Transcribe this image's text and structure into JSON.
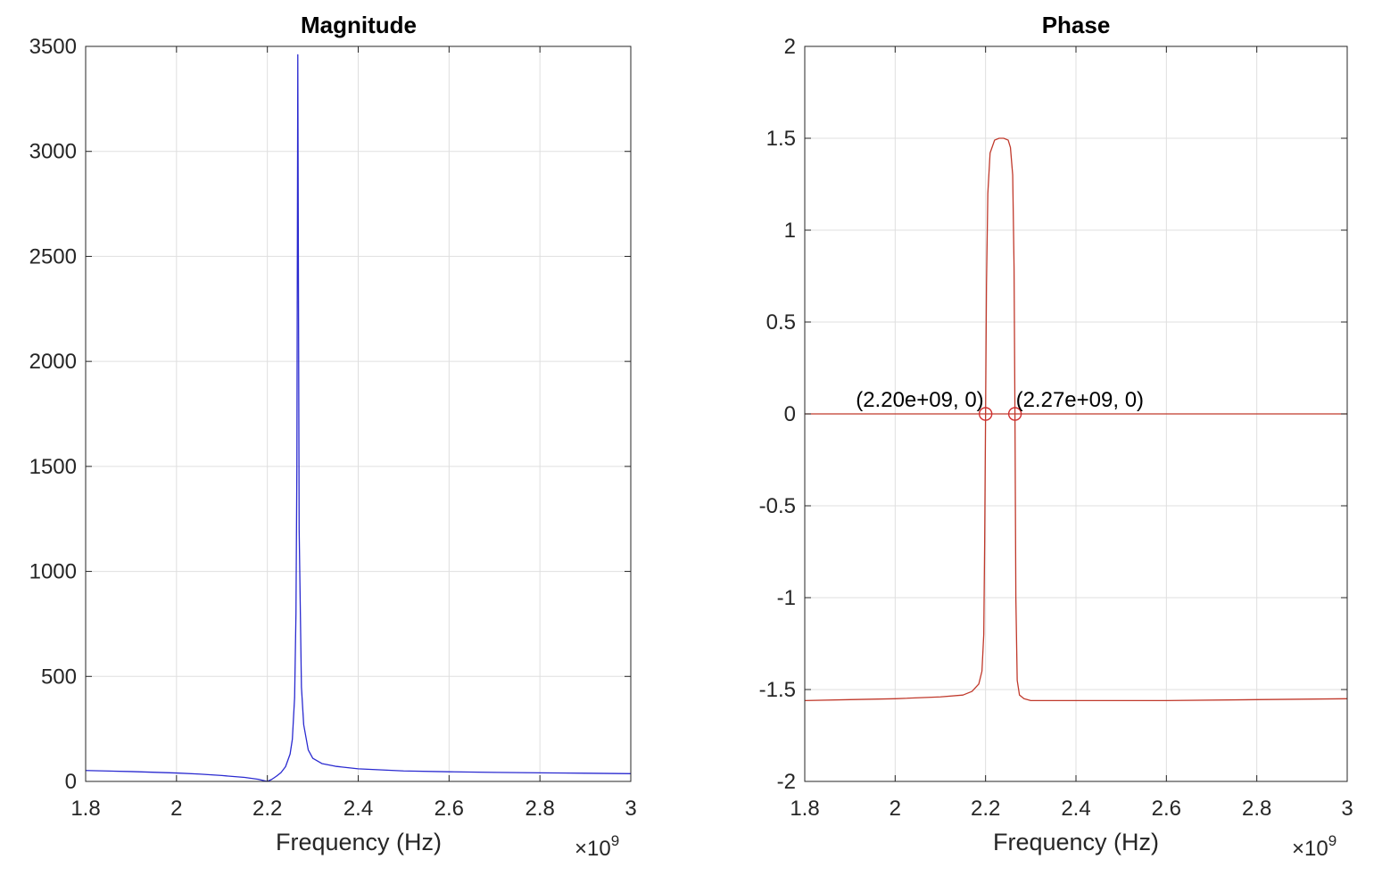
{
  "chart_data": [
    {
      "type": "line",
      "title": "Magnitude",
      "xlabel": "Frequency (Hz)",
      "ylabel": "",
      "x_exponent_label": "×10",
      "x_exponent": "9",
      "xlim": [
        1800000000.0,
        3000000000.0
      ],
      "ylim": [
        0,
        3500
      ],
      "xticks": [
        1800000000.0,
        2000000000.0,
        2200000000.0,
        2400000000.0,
        2600000000.0,
        2800000000.0,
        3000000000.0
      ],
      "xtick_labels": [
        "1.8",
        "2",
        "2.2",
        "2.4",
        "2.6",
        "2.8",
        "3"
      ],
      "yticks": [
        0,
        500,
        1000,
        1500,
        2000,
        2500,
        3000,
        3500
      ],
      "ytick_labels": [
        "0",
        "500",
        "1000",
        "1500",
        "2000",
        "2500",
        "3000",
        "3500"
      ],
      "grid": true,
      "line_color": "#2a2ad0",
      "series": [
        {
          "x": [
            1800000000.0,
            1900000000.0,
            2000000000.0,
            2050000000.0,
            2100000000.0,
            2150000000.0,
            2180000000.0,
            2200000000.0,
            2210000000.0,
            2220000000.0,
            2230000000.0,
            2240000000.0,
            2250000000.0,
            2255000000.0,
            2260000000.0,
            2263000000.0,
            2265000000.0,
            2267000000.0,
            2270000000.0,
            2275000000.0,
            2280000000.0,
            2290000000.0,
            2300000000.0,
            2320000000.0,
            2350000000.0,
            2400000000.0,
            2500000000.0,
            2600000000.0,
            2700000000.0,
            2800000000.0,
            2900000000.0,
            3000000000.0
          ],
          "y": [
            52,
            47,
            40,
            35,
            28,
            19,
            10,
            0,
            10,
            25,
            42,
            70,
            130,
            200,
            400,
            800,
            1500,
            3460,
            1200,
            450,
            270,
            150,
            110,
            85,
            72,
            60,
            50,
            46,
            43,
            41,
            39,
            37
          ]
        }
      ]
    },
    {
      "type": "line",
      "title": "Phase",
      "xlabel": "Frequency (Hz)",
      "ylabel": "",
      "x_exponent_label": "×10",
      "x_exponent": "9",
      "xlim": [
        1800000000.0,
        3000000000.0
      ],
      "ylim": [
        -2,
        2
      ],
      "xticks": [
        1800000000.0,
        2000000000.0,
        2200000000.0,
        2400000000.0,
        2600000000.0,
        2800000000.0,
        3000000000.0
      ],
      "xtick_labels": [
        "1.8",
        "2",
        "2.2",
        "2.4",
        "2.6",
        "2.8",
        "3"
      ],
      "yticks": [
        -2,
        -1.5,
        -1,
        -0.5,
        0,
        0.5,
        1,
        1.5,
        2
      ],
      "ytick_labels": [
        "-2",
        "-1.5",
        "-1",
        "-0.5",
        "0",
        "0.5",
        "1",
        "1.5",
        "2"
      ],
      "grid": true,
      "line_color": "#c0392b",
      "series": [
        {
          "x": [
            1800000000.0,
            1900000000.0,
            2000000000.0,
            2100000000.0,
            2150000000.0,
            2170000000.0,
            2185000000.0,
            2192000000.0,
            2196000000.0,
            2198000000.0,
            2200000000.0,
            2202000000.0,
            2205000000.0,
            2210000000.0,
            2220000000.0,
            2230000000.0,
            2240000000.0,
            2250000000.0,
            2255000000.0,
            2260000000.0,
            2263000000.0,
            2265000000.0,
            2267000000.0,
            2270000000.0,
            2275000000.0,
            2285000000.0,
            2300000000.0,
            2400000000.0,
            2600000000.0,
            2800000000.0,
            3000000000.0
          ],
          "y": [
            -1.56,
            -1.555,
            -1.55,
            -1.54,
            -1.53,
            -1.51,
            -1.47,
            -1.4,
            -1.2,
            -0.7,
            0.0,
            0.7,
            1.2,
            1.42,
            1.49,
            1.5,
            1.5,
            1.49,
            1.45,
            1.3,
            0.8,
            0.0,
            -1.0,
            -1.45,
            -1.53,
            -1.55,
            -1.56,
            -1.56,
            -1.56,
            -1.555,
            -1.55
          ]
        },
        {
          "x": [
            1800000000.0,
            3000000000.0
          ],
          "y": [
            0,
            0
          ]
        }
      ],
      "markers": [
        {
          "x": 2200000000.0,
          "y": 0,
          "label": "(2.20e+09, 0)"
        },
        {
          "x": 2265000000.0,
          "y": 0,
          "label": "(2.27e+09, 0)"
        }
      ]
    }
  ]
}
